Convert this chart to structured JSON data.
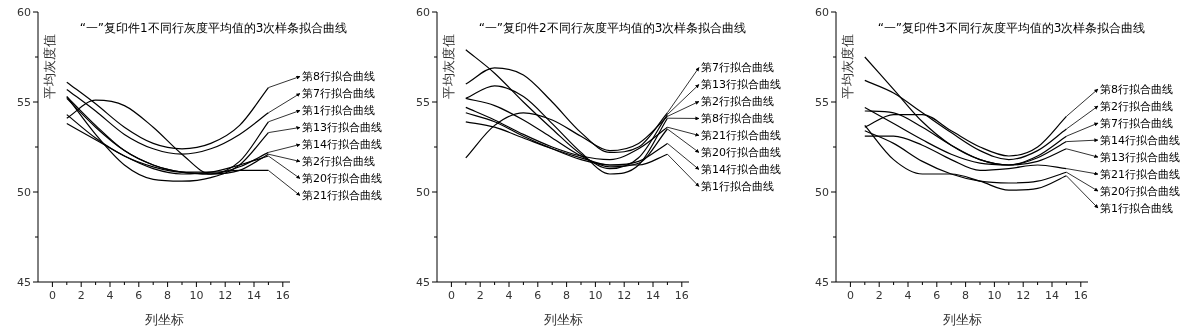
{
  "chart_data": [
    {
      "type": "line",
      "title": "“一”复印件1不同行灰度平均值的3次样条拟合曲线",
      "xlabel": "列坐标",
      "ylabel": "平均灰度值",
      "x": [
        1,
        3,
        5,
        7,
        9,
        11,
        13,
        15
      ],
      "xlim": [
        -1,
        16.5
      ],
      "ylim": [
        45,
        60
      ],
      "xticks": [
        0,
        {
          "value": 1,
          "label": null
        },
        2,
        {
          "value": 3,
          "label": null
        },
        4,
        {
          "value": 5,
          "label": null
        },
        6,
        {
          "value": 7,
          "label": null
        },
        8,
        {
          "value": 9,
          "label": null
        },
        10,
        {
          "value": 11,
          "label": null
        },
        12,
        {
          "value": 13,
          "label": null
        },
        14,
        {
          "value": 15,
          "label": null
        },
        16
      ],
      "yticks": [
        45,
        {
          "value": 47.5,
          "label": null
        },
        50,
        {
          "value": 52.5,
          "label": null
        },
        55,
        {
          "value": 57.5,
          "label": null
        },
        60
      ],
      "series": [
        {
          "name": "第2行拟合曲线",
          "color": "#000000",
          "values": [
            54.1,
            55.1,
            54.8,
            53.6,
            52.1,
            51.0,
            51.2,
            52.1
          ]
        },
        {
          "name": "第8行拟合曲线",
          "color": "#000000",
          "values": [
            56.1,
            54.9,
            53.6,
            52.7,
            52.4,
            52.7,
            53.7,
            55.8
          ]
        },
        {
          "name": "第7行拟合曲线",
          "color": "#000000",
          "values": [
            55.7,
            54.5,
            53.2,
            52.4,
            52.1,
            52.4,
            53.2,
            54.4
          ]
        },
        {
          "name": "第1行拟合曲线",
          "color": "#000000",
          "values": [
            55.3,
            53.7,
            52.3,
            51.5,
            51.1,
            51.0,
            51.7,
            53.9
          ]
        },
        {
          "name": "第20行拟合曲线",
          "color": "#000000",
          "values": [
            53.8,
            52.9,
            52.0,
            51.3,
            51.0,
            51.1,
            51.5,
            52.0
          ]
        },
        {
          "name": "第14行拟合曲线",
          "color": "#000000",
          "values": [
            55.2,
            53.6,
            52.3,
            51.5,
            51.1,
            51.0,
            51.4,
            52.2
          ]
        },
        {
          "name": "第21行拟合曲线",
          "color": "#000000",
          "values": [
            54.3,
            53.0,
            52.0,
            51.4,
            51.1,
            51.1,
            51.2,
            51.2
          ]
        },
        {
          "name": "第13行拟合曲线",
          "color": "#000000",
          "values": [
            55.3,
            53.2,
            51.5,
            50.7,
            50.6,
            50.8,
            51.5,
            53.3
          ]
        }
      ],
      "legend": "right"
    },
    {
      "type": "line",
      "title": "“一”复印件2不同行灰度平均值的3次样条拟合曲线",
      "xlabel": "列坐标",
      "ylabel": "平均灰度值",
      "x": [
        1,
        3,
        5,
        7,
        9,
        11,
        13,
        15
      ],
      "xlim": [
        -1,
        16.5
      ],
      "ylim": [
        45,
        60
      ],
      "xticks": [
        0,
        {
          "value": 1,
          "label": null
        },
        2,
        {
          "value": 3,
          "label": null
        },
        4,
        {
          "value": 5,
          "label": null
        },
        6,
        {
          "value": 7,
          "label": null
        },
        8,
        {
          "value": 9,
          "label": null
        },
        10,
        {
          "value": 11,
          "label": null
        },
        12,
        {
          "value": 13,
          "label": null
        },
        14,
        {
          "value": 15,
          "label": null
        },
        16
      ],
      "yticks": [
        45,
        {
          "value": 47.5,
          "label": null
        },
        50,
        {
          "value": 52.5,
          "label": null
        },
        55,
        {
          "value": 57.5,
          "label": null
        },
        60
      ],
      "series": [
        {
          "name": "第13行拟合曲线",
          "color": "#000000",
          "values": [
            57.9,
            56.6,
            55.0,
            53.5,
            52.1,
            51.3,
            51.9,
            54.3
          ]
        },
        {
          "name": "第7行拟合曲线",
          "color": "#000000",
          "values": [
            56.0,
            56.9,
            56.5,
            55.0,
            53.3,
            52.2,
            52.5,
            54.4
          ]
        },
        {
          "name": "第8行拟合曲线",
          "color": "#000000",
          "values": [
            55.2,
            55.9,
            55.3,
            53.8,
            52.2,
            51.0,
            51.5,
            54.1
          ]
        },
        {
          "name": "第2行拟合曲线",
          "color": "#000000",
          "values": [
            51.9,
            53.7,
            54.4,
            54.0,
            53.1,
            52.3,
            52.7,
            54.2
          ]
        },
        {
          "name": "第14行拟合曲线",
          "color": "#000000",
          "values": [
            54.4,
            53.9,
            53.1,
            52.4,
            51.8,
            51.5,
            51.7,
            52.7
          ]
        },
        {
          "name": "第21行拟合曲线",
          "color": "#000000",
          "values": [
            54.7,
            54.0,
            53.2,
            52.5,
            52.0,
            51.8,
            52.4,
            53.6
          ]
        },
        {
          "name": "第20行拟合曲线",
          "color": "#000000",
          "values": [
            55.2,
            54.8,
            54.0,
            53.0,
            52.0,
            51.4,
            51.6,
            53.5
          ]
        },
        {
          "name": "第1行拟合曲线",
          "color": "#000000",
          "values": [
            53.9,
            53.6,
            53.0,
            52.4,
            51.9,
            51.5,
            51.5,
            52.1
          ]
        }
      ],
      "legend": "right"
    },
    {
      "type": "line",
      "title": "“一”复印件3不同行灰度平均值的3次样条拟合曲线",
      "xlabel": "列坐标",
      "ylabel": "平均灰度值",
      "x": [
        1,
        3,
        5,
        7,
        9,
        11,
        13,
        15
      ],
      "xlim": [
        -1,
        16.5
      ],
      "ylim": [
        45,
        60
      ],
      "xticks": [
        0,
        {
          "value": 1,
          "label": null
        },
        2,
        {
          "value": 3,
          "label": null
        },
        4,
        {
          "value": 5,
          "label": null
        },
        6,
        {
          "value": 7,
          "label": null
        },
        8,
        {
          "value": 9,
          "label": null
        },
        10,
        {
          "value": 11,
          "label": null
        },
        12,
        {
          "value": 13,
          "label": null
        },
        14,
        {
          "value": 15,
          "label": null
        },
        16
      ],
      "yticks": [
        45,
        {
          "value": 47.5,
          "label": null
        },
        50,
        {
          "value": 52.5,
          "label": null
        },
        55,
        {
          "value": 57.5,
          "label": null
        },
        60
      ],
      "series": [
        {
          "name": "第2行拟合曲线",
          "color": "#000000",
          "values": [
            56.2,
            55.5,
            54.4,
            53.3,
            52.3,
            51.8,
            52.3,
            53.5
          ]
        },
        {
          "name": "第7行拟合曲线",
          "color": "#000000",
          "values": [
            57.5,
            55.7,
            53.9,
            52.6,
            51.8,
            51.5,
            52.0,
            53.1
          ]
        },
        {
          "name": "第8行拟合曲线",
          "color": "#000000",
          "values": [
            53.6,
            54.3,
            54.3,
            53.4,
            52.5,
            52.0,
            52.5,
            54.2
          ]
        },
        {
          "name": "第13行拟合曲线",
          "color": "#000000",
          "values": [
            54.7,
            53.8,
            52.9,
            52.1,
            51.6,
            51.5,
            51.7,
            52.4
          ]
        },
        {
          "name": "第14行拟合曲线",
          "color": "#000000",
          "values": [
            54.5,
            54.4,
            53.6,
            52.6,
            51.8,
            51.5,
            51.9,
            52.8
          ]
        },
        {
          "name": "第21行拟合曲线",
          "color": "#000000",
          "values": [
            53.1,
            53.1,
            52.6,
            51.8,
            51.2,
            51.3,
            51.5,
            51.3
          ]
        },
        {
          "name": "第20行拟合曲线",
          "color": "#000000",
          "values": [
            53.4,
            52.7,
            51.7,
            51.0,
            50.6,
            50.5,
            50.6,
            51.1
          ]
        },
        {
          "name": "第1行拟合曲线",
          "color": "#000000",
          "values": [
            53.7,
            51.8,
            51.0,
            51.0,
            50.6,
            50.1,
            50.2,
            50.9
          ]
        }
      ],
      "legend": "right"
    }
  ]
}
